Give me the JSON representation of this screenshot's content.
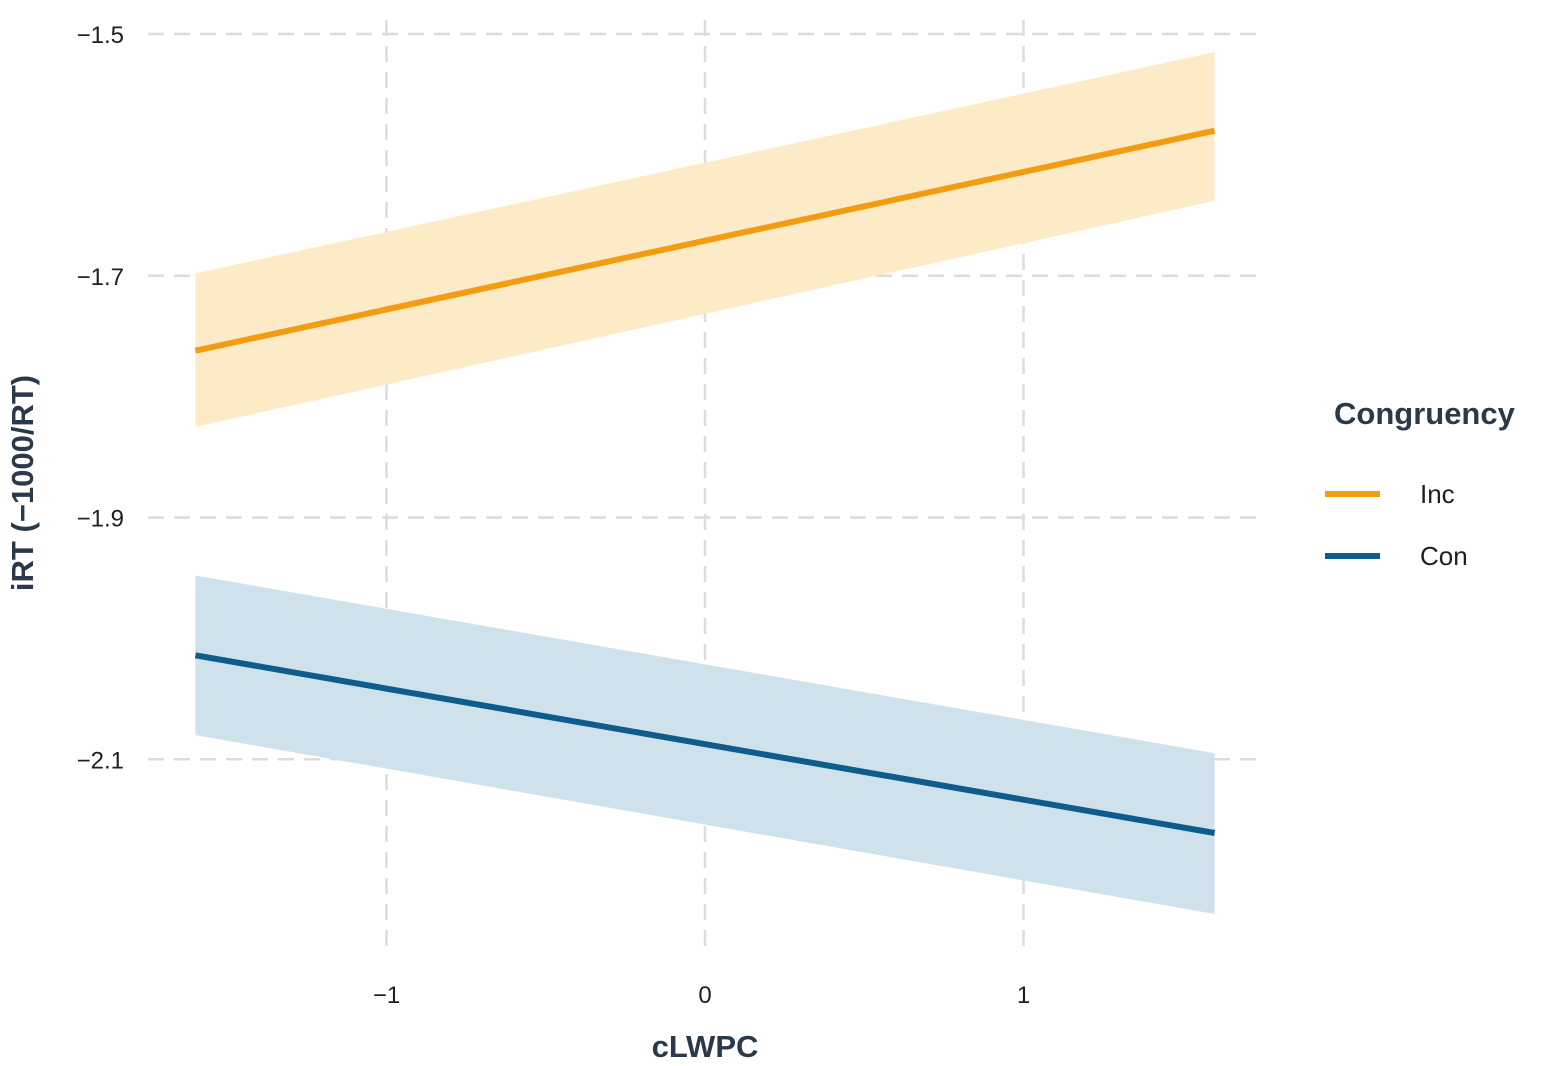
{
  "chart_data": {
    "type": "line",
    "title": "",
    "xlabel": "cLWPC",
    "ylabel": "iRT (−1000/RT)",
    "xlim": [
      -1.6,
      1.6
    ],
    "ylim": [
      -2.26,
      -1.5
    ],
    "x_ticks": [
      -1,
      0,
      1
    ],
    "x_tick_labels": [
      "−1",
      "0",
      "1"
    ],
    "y_ticks": [
      -1.5,
      -1.7,
      -1.9,
      -2.1
    ],
    "y_tick_labels": [
      "−1.5",
      "−1.7",
      "−1.9",
      "−2.1"
    ],
    "grid": true,
    "legend": {
      "title": "Congruency",
      "placement": "right"
    },
    "series": [
      {
        "name": "Inc",
        "color": "#F39C12",
        "band_color": "#FDEBC8",
        "x": [
          -1.6,
          1.6
        ],
        "y": [
          -1.762,
          -1.58
        ],
        "lower": [
          -1.825,
          -1.638
        ],
        "upper": [
          -1.698,
          -1.515
        ]
      },
      {
        "name": "Con",
        "color": "#0E5C8A",
        "band_color": "#CFE1EB",
        "x": [
          -1.6,
          1.6
        ],
        "y": [
          -2.014,
          -2.161
        ],
        "lower": [
          -2.08,
          -2.228
        ],
        "upper": [
          -1.948,
          -2.095
        ]
      }
    ]
  }
}
